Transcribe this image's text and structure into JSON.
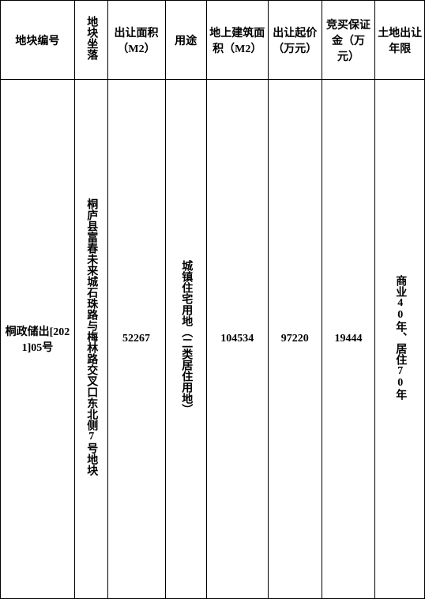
{
  "table": {
    "columns": [
      {
        "label": "地块编号"
      },
      {
        "label": "地块坐落"
      },
      {
        "label": "出让面积（M2）"
      },
      {
        "label": "用途"
      },
      {
        "label": "地上建筑面积（M2）"
      },
      {
        "label": "出让起价（万元）"
      },
      {
        "label": "竞买保证金（万元）"
      },
      {
        "label": "土地出让年限"
      }
    ],
    "rows": [
      {
        "c0": "桐政储出[2021]05号",
        "c1": "桐庐县富春未来城石珠路与梅林路交叉口东北侧7号地块",
        "c2": "52267",
        "c3": "城镇住宅用地（二类居住用地）",
        "c4": "104534",
        "c5": "97220",
        "c6": "19444",
        "c7": "商业40年、居住70年"
      }
    ],
    "style": {
      "border_color": "#000000",
      "background_color": "#ffffff",
      "text_color": "#000000",
      "font_family": "SimSun",
      "header_fontsize": 14,
      "cell_fontsize": 14,
      "font_weight": "bold"
    }
  }
}
